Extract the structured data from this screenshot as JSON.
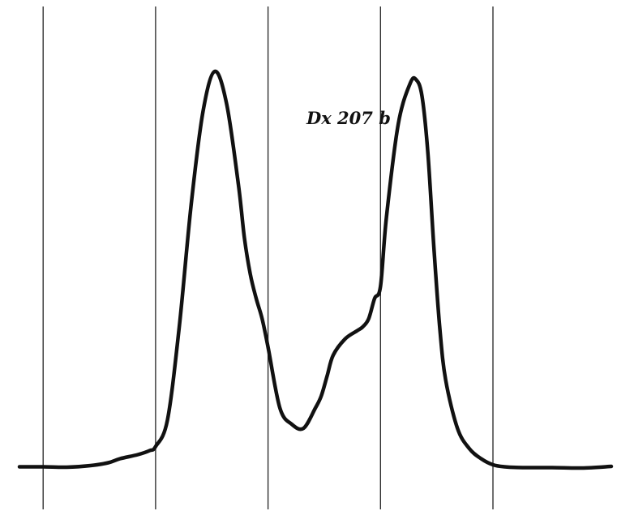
{
  "chart_data": {
    "type": "line",
    "title": "",
    "xlabel": "",
    "ylabel": "",
    "annotations": [
      "Dx 207 b"
    ],
    "grid": "vertical",
    "xlim": [
      0,
      100
    ],
    "ylim": [
      0,
      100
    ],
    "vertical_gridlines_x": [
      4,
      23,
      42,
      61,
      80
    ],
    "series": [
      {
        "x": [
          0,
          4,
          8,
          12,
          15,
          17,
          20,
          22,
          23,
          25,
          27,
          29,
          31,
          33,
          35,
          37,
          38,
          39,
          40,
          41,
          42,
          44,
          46,
          48,
          50,
          51,
          52,
          53,
          55,
          57,
          58,
          59,
          60,
          61,
          62,
          64,
          66,
          67,
          68,
          69,
          70,
          71,
          72,
          74,
          76,
          78,
          80,
          82,
          85,
          90,
          95,
          100
        ],
        "y": [
          0.5,
          0.5,
          0.4,
          0.8,
          1.5,
          2.5,
          3.5,
          4.5,
          5.5,
          12,
          35,
          65,
          88,
          98,
          90,
          70,
          57,
          48,
          42,
          37,
          30,
          15,
          11,
          10,
          15,
          18,
          23,
          28,
          32,
          34,
          35,
          37,
          42,
          45,
          62,
          85,
          95,
          96,
          92,
          78,
          55,
          35,
          22,
          10,
          5,
          2.5,
          1,
          0.5,
          0.3,
          0.3,
          0.2,
          0.6
        ],
        "color": "#111111"
      }
    ]
  }
}
